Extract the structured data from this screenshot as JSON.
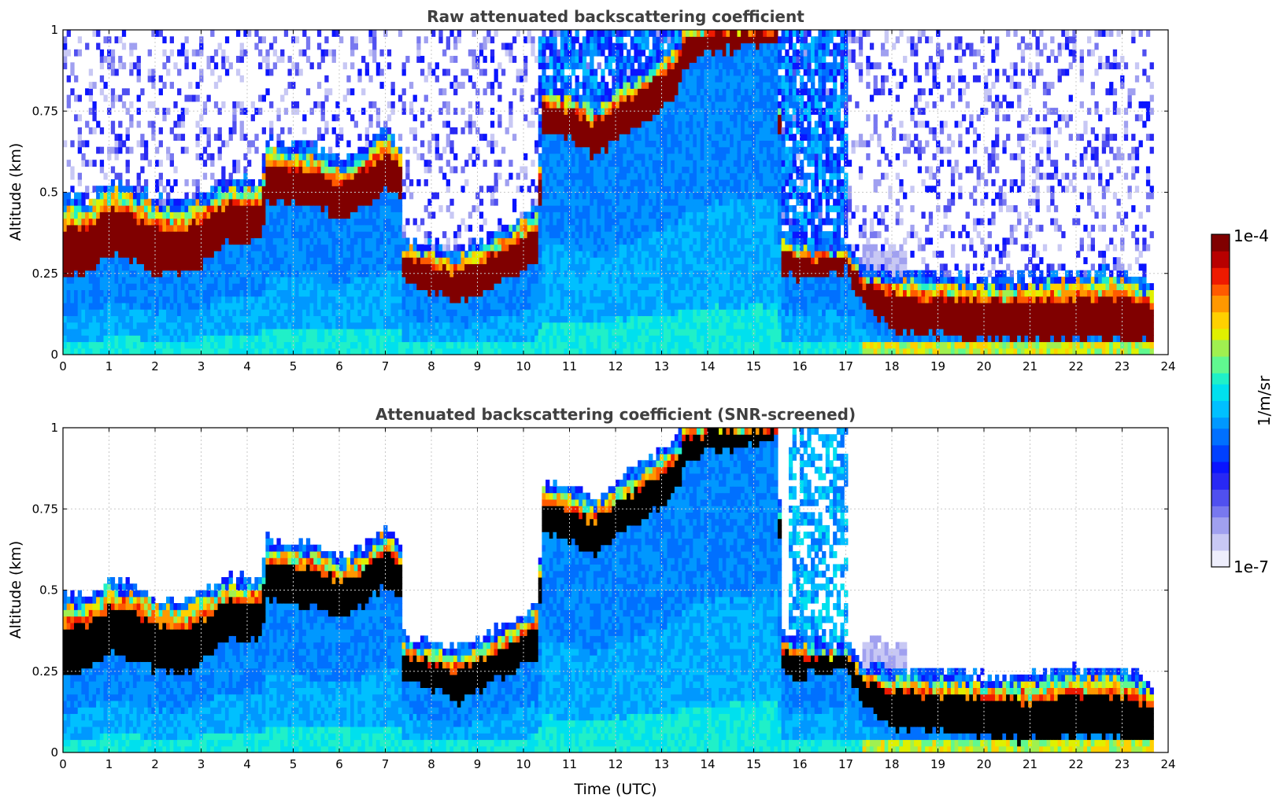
{
  "colors": {
    "palette": [
      "#eeeefc",
      "#c8c8f4",
      "#a0a0f0",
      "#7878f0",
      "#5050f0",
      "#2828f4",
      "#0a14ff",
      "#0040ff",
      "#0070ff",
      "#0098ff",
      "#00c0ff",
      "#00e0ee",
      "#20f0c8",
      "#60f890",
      "#a0f050",
      "#e0f000",
      "#ffd000",
      "#ff9800",
      "#ff5a00",
      "#ee1a00",
      "#b80000",
      "#800000"
    ],
    "saturated_screened": "#000000",
    "background": "#ffffff"
  },
  "colorbar": {
    "label": "1/m/sr",
    "max_label": "1e-4",
    "min_label": "1e-7"
  },
  "chart_data": [
    {
      "type": "heatmap",
      "title": "Raw attenuated backscattering coefficient",
      "xlabel": "",
      "ylabel": "Altitude (km)",
      "xlim": [
        0,
        24
      ],
      "ylim": [
        0,
        1
      ],
      "x_ticks": [
        "0",
        "1",
        "2",
        "3",
        "4",
        "5",
        "6",
        "7",
        "8",
        "9",
        "10",
        "11",
        "12",
        "13",
        "14",
        "15",
        "16",
        "17",
        "18",
        "19",
        "20",
        "21",
        "22",
        "23",
        "24"
      ],
      "y_ticks": [
        "0",
        "0.25",
        "0.5",
        "0.75",
        "1"
      ],
      "grid": true,
      "data_end_hour": 23.6,
      "layer_top_km": [
        [
          0,
          0.45
        ],
        [
          0.5,
          0.44
        ],
        [
          1,
          0.5
        ],
        [
          1.5,
          0.48
        ],
        [
          2,
          0.44
        ],
        [
          2.5,
          0.43
        ],
        [
          3,
          0.46
        ],
        [
          3.5,
          0.5
        ],
        [
          4,
          0.5
        ],
        [
          4.3,
          0.5
        ],
        [
          4.35,
          0.62
        ],
        [
          5,
          0.61
        ],
        [
          5.5,
          0.6
        ],
        [
          6,
          0.56
        ],
        [
          6.5,
          0.6
        ],
        [
          7,
          0.66
        ],
        [
          7.3,
          0.6
        ],
        [
          7.35,
          0.32
        ],
        [
          8,
          0.3
        ],
        [
          8.5,
          0.28
        ],
        [
          9,
          0.31
        ],
        [
          9.5,
          0.35
        ],
        [
          10,
          0.4
        ],
        [
          10.3,
          0.42
        ],
        [
          10.35,
          0.8
        ],
        [
          11,
          0.78
        ],
        [
          11.5,
          0.74
        ],
        [
          12,
          0.8
        ],
        [
          12.5,
          0.84
        ],
        [
          13,
          0.9
        ],
        [
          13.4,
          0.95
        ],
        [
          13.45,
          1
        ],
        [
          14,
          1
        ],
        [
          15.5,
          1
        ],
        [
          15.55,
          0.34
        ],
        [
          16,
          0.32
        ],
        [
          16.5,
          0.3
        ],
        [
          17,
          0.3
        ],
        [
          17.3,
          0.24
        ],
        [
          18,
          0.22
        ],
        [
          19,
          0.21
        ],
        [
          20,
          0.2
        ],
        [
          21,
          0.2
        ],
        [
          22,
          0.22
        ],
        [
          23,
          0.22
        ],
        [
          23.6,
          0.18
        ]
      ],
      "layer_base_km": [
        [
          0,
          0.22
        ],
        [
          0.5,
          0.24
        ],
        [
          1,
          0.3
        ],
        [
          1.5,
          0.28
        ],
        [
          2,
          0.24
        ],
        [
          2.5,
          0.23
        ],
        [
          3,
          0.27
        ],
        [
          3.5,
          0.34
        ],
        [
          4,
          0.33
        ],
        [
          4.3,
          0.34
        ],
        [
          4.35,
          0.46
        ],
        [
          5,
          0.45
        ],
        [
          5.5,
          0.44
        ],
        [
          6,
          0.41
        ],
        [
          6.5,
          0.45
        ],
        [
          7,
          0.5
        ],
        [
          7.3,
          0.48
        ],
        [
          7.35,
          0.22
        ],
        [
          8,
          0.18
        ],
        [
          8.5,
          0.15
        ],
        [
          9,
          0.18
        ],
        [
          9.5,
          0.22
        ],
        [
          10,
          0.26
        ],
        [
          10.3,
          0.28
        ],
        [
          10.35,
          0.67
        ],
        [
          11,
          0.65
        ],
        [
          11.5,
          0.6
        ],
        [
          12,
          0.66
        ],
        [
          12.5,
          0.7
        ],
        [
          13,
          0.75
        ],
        [
          13.4,
          0.82
        ],
        [
          13.45,
          0.88
        ],
        [
          14,
          0.92
        ],
        [
          15.5,
          0.95
        ],
        [
          15.55,
          0.24
        ],
        [
          16,
          0.22
        ],
        [
          16.5,
          0.24
        ],
        [
          17,
          0.25
        ],
        [
          17.3,
          0.15
        ],
        [
          18,
          0.07
        ],
        [
          19,
          0.05
        ],
        [
          20,
          0.04
        ],
        [
          21,
          0.03
        ],
        [
          22,
          0.04
        ],
        [
          23,
          0.04
        ],
        [
          23.6,
          0.03
        ]
      ]
    },
    {
      "type": "heatmap",
      "title": "Attenuated backscattering coefficient (SNR-screened)",
      "xlabel": "Time (UTC)",
      "ylabel": "Altitude (km)",
      "xlim": [
        0,
        24
      ],
      "ylim": [
        0,
        1
      ],
      "x_ticks": [
        "0",
        "1",
        "2",
        "3",
        "4",
        "5",
        "6",
        "7",
        "8",
        "9",
        "10",
        "11",
        "12",
        "13",
        "14",
        "15",
        "16",
        "17",
        "18",
        "19",
        "20",
        "21",
        "22",
        "23",
        "24"
      ],
      "y_ticks": [
        "0",
        "0.25",
        "0.5",
        "0.75",
        "1"
      ],
      "grid": true,
      "data_end_hour": 23.6
    }
  ]
}
